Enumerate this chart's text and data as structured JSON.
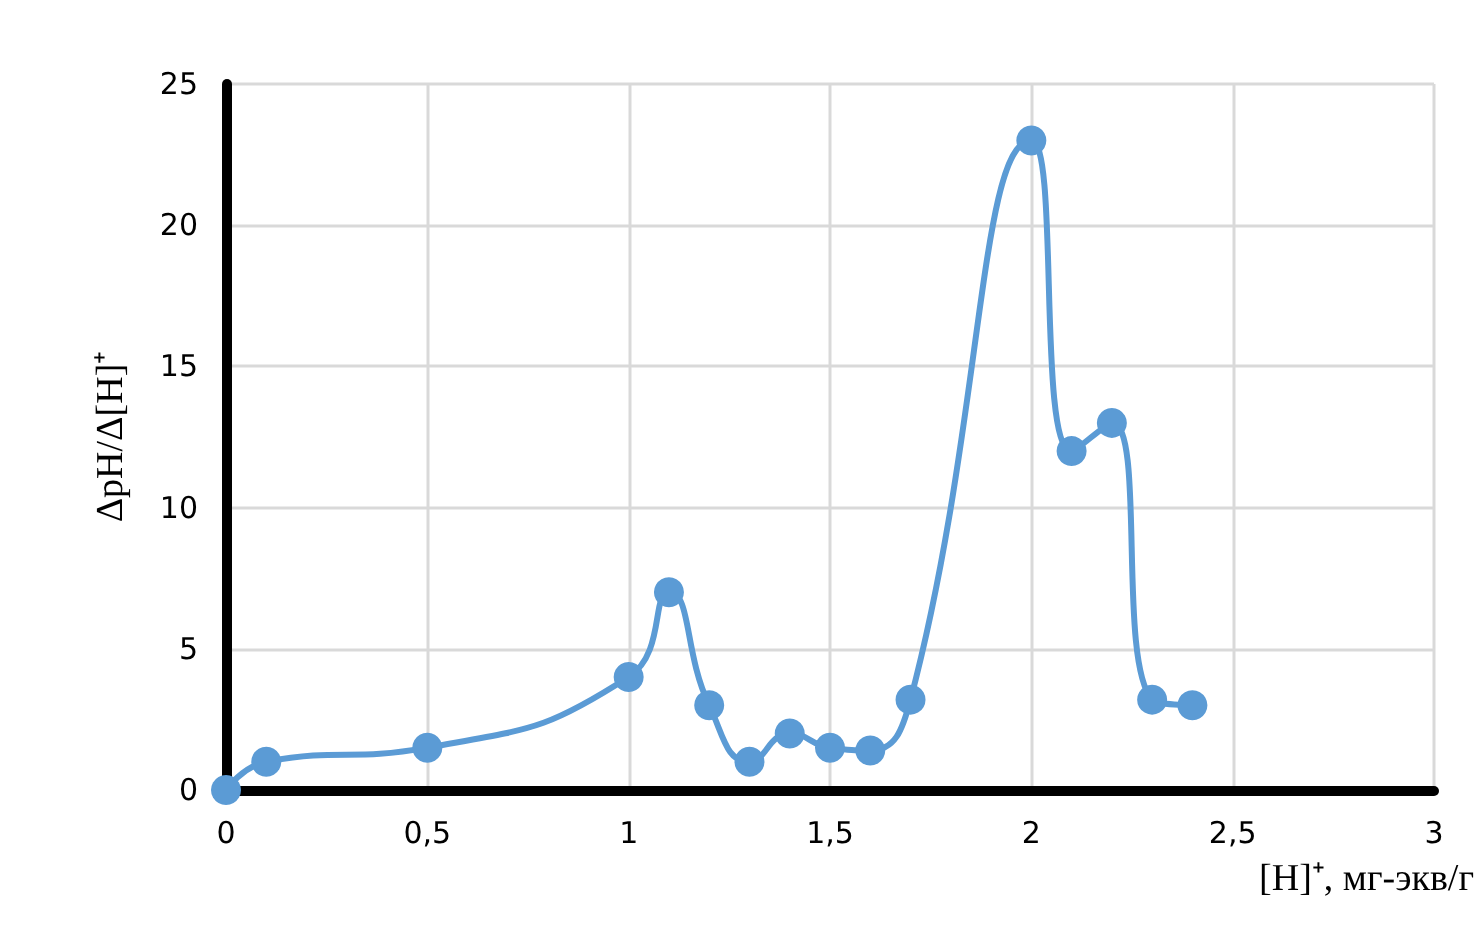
{
  "chart_data": {
    "type": "line",
    "xlabel": "[H]⁺, мг-экв/г",
    "ylabel": "ΔpH/Δ[H]⁺",
    "x": [
      0,
      0.1,
      0.5,
      1,
      1.1,
      1.2,
      1.3,
      1.4,
      1.5,
      1.6,
      1.7,
      2,
      2.1,
      2.2,
      2.3,
      2.4
    ],
    "series": [
      {
        "color": "#5b9bd5",
        "values": [
          0,
          1,
          1.5,
          4,
          7,
          3,
          1,
          2,
          1.5,
          1.4,
          3.2,
          23,
          12,
          13,
          3.2,
          3
        ]
      }
    ],
    "xlim": [
      0,
      3
    ],
    "xticks": [
      {
        "value": 0,
        "label": "0"
      },
      {
        "value": 0.5,
        "label": "0,5"
      },
      {
        "value": 1,
        "label": "1"
      },
      {
        "value": 1.5,
        "label": "1,5"
      },
      {
        "value": 2,
        "label": "2"
      },
      {
        "value": 2.5,
        "label": "2,5"
      },
      {
        "value": 3,
        "label": "3"
      }
    ],
    "ylim": [
      0,
      25
    ],
    "yticks": [
      0,
      5,
      10,
      15,
      20,
      25
    ],
    "grid": true,
    "marker": "circle",
    "line_style": "solid"
  }
}
